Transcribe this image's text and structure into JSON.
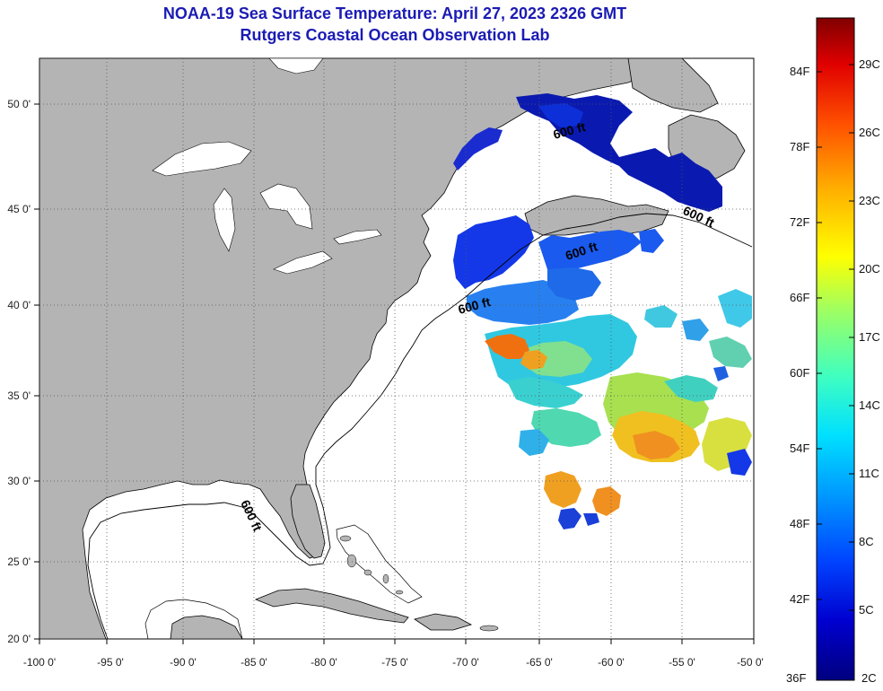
{
  "title": {
    "line1": "NOAA-19 Sea Surface Temperature:  April 27, 2023 2326 GMT",
    "line2": "Rutgers Coastal Ocean Observation Lab"
  },
  "colors": {
    "title": "#1b1bb4",
    "land": "#b4b4b4",
    "ocean_nodata": "#ffffff",
    "grid": "#555555"
  },
  "map": {
    "lon_ticks": [
      "-100 0'",
      "-95 0'",
      "-90 0'",
      "-85 0'",
      "-80 0'",
      "-75 0'",
      "-70 0'",
      "-65 0'",
      "-60 0'",
      "-55 0'",
      "-50 0'"
    ],
    "lat_ticks": [
      "50 0'",
      "45 0'",
      "40 0'",
      "35 0'",
      "30 0'",
      "25 0'",
      "20 0'"
    ],
    "lon_range": [
      -100,
      -50
    ],
    "lat_range": [
      20,
      52.5
    ],
    "contour_labels": [
      "600 ft",
      "600 ft",
      "600 ft",
      "600 ft",
      "600 ft"
    ]
  },
  "colorbar": {
    "fahrenheit": [
      "84F",
      "78F",
      "72F",
      "66F",
      "60F",
      "54F",
      "48F",
      "42F",
      "36F"
    ],
    "celsius": [
      "29C",
      "26C",
      "23C",
      "20C",
      "17C",
      "14C",
      "11C",
      "8C",
      "5C",
      "2C"
    ],
    "range_f": [
      36,
      88
    ],
    "gradient": [
      "#00007f",
      "#0000d0",
      "#0044ff",
      "#0099ff",
      "#00e0ff",
      "#40ffbf",
      "#a0ff60",
      "#ffff00",
      "#ffb000",
      "#ff5000",
      "#e00000",
      "#800000"
    ]
  }
}
